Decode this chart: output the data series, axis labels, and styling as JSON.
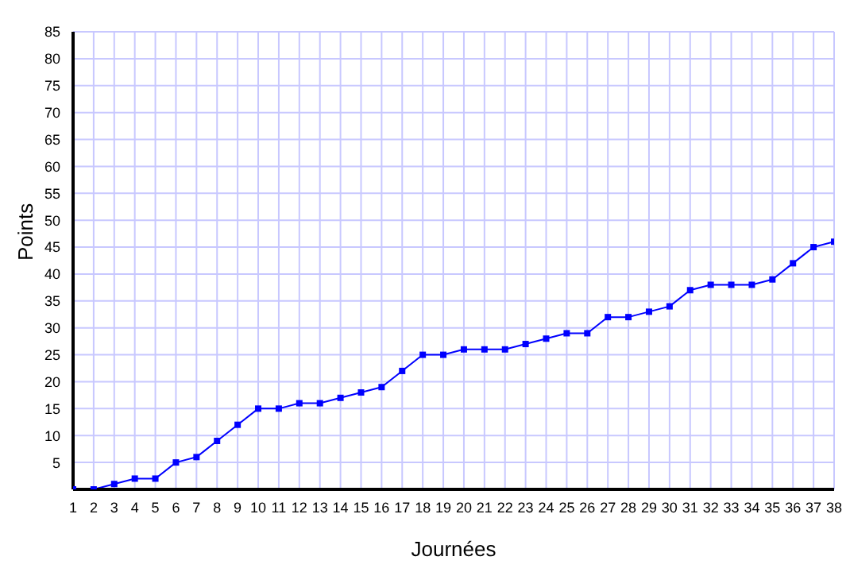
{
  "chart_data": {
    "type": "line",
    "xlabel": "Journées",
    "ylabel": "Points",
    "x": [
      1,
      2,
      3,
      4,
      5,
      6,
      7,
      8,
      9,
      10,
      11,
      12,
      13,
      14,
      15,
      16,
      17,
      18,
      19,
      20,
      21,
      22,
      23,
      24,
      25,
      26,
      27,
      28,
      29,
      30,
      31,
      32,
      33,
      34,
      35,
      36,
      37,
      38
    ],
    "series": [
      {
        "color": "#0000ff",
        "values": [
          0,
          0,
          1,
          2,
          2,
          5,
          6,
          9,
          12,
          15,
          15,
          16,
          16,
          17,
          18,
          19,
          22,
          25,
          25,
          26,
          26,
          26,
          27,
          28,
          29,
          29,
          32,
          32,
          33,
          34,
          37,
          38,
          38,
          38,
          39,
          42,
          45,
          46
        ]
      }
    ],
    "xlim": [
      1,
      38
    ],
    "xticks": [
      1,
      2,
      3,
      4,
      5,
      6,
      7,
      8,
      9,
      10,
      11,
      12,
      13,
      14,
      15,
      16,
      17,
      18,
      19,
      20,
      21,
      22,
      23,
      24,
      25,
      26,
      27,
      28,
      29,
      30,
      31,
      32,
      33,
      34,
      35,
      36,
      37,
      38
    ],
    "ylim": [
      0,
      85
    ],
    "yticks": [
      {
        "value": 0,
        "label": null
      },
      5,
      10,
      15,
      20,
      25,
      30,
      35,
      40,
      45,
      50,
      55,
      60,
      65,
      70,
      75,
      80,
      85
    ],
    "grid": true,
    "marker": "square",
    "line_style": "solid",
    "legend": false
  }
}
